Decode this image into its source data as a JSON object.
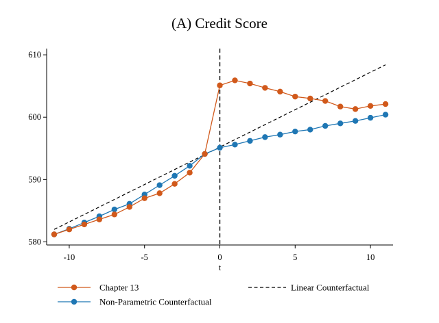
{
  "chart_data": {
    "type": "line",
    "title": "(A) Credit Score",
    "xlabel": "t",
    "ylabel": "",
    "xlim": [
      -11.5,
      11.5
    ],
    "ylim": [
      579.5,
      611
    ],
    "xticks": [
      -10,
      -5,
      0,
      5,
      10
    ],
    "yticks": [
      580,
      590,
      600,
      610
    ],
    "grid": false,
    "vline": 0,
    "legend_position": "bottom",
    "series": [
      {
        "name": "Chapter 13",
        "color": "#d1591b",
        "marker": "circle",
        "x": [
          -11,
          -10,
          -9,
          -8,
          -7,
          -6,
          -5,
          -4,
          -3,
          -2,
          -1,
          0,
          1,
          2,
          3,
          4,
          5,
          6,
          7,
          8,
          9,
          10,
          11
        ],
        "y": [
          581.2,
          582.0,
          582.8,
          583.6,
          584.4,
          585.6,
          587.0,
          587.8,
          589.3,
          591.1,
          594.1,
          605.1,
          605.9,
          605.4,
          604.7,
          604.1,
          603.3,
          603.0,
          602.6,
          601.7,
          601.3,
          601.8,
          602.1
        ]
      },
      {
        "name": "Non-Parametric  Counterfactual",
        "color": "#1f77b4",
        "marker": "circle",
        "x": [
          -11,
          -10,
          -9,
          -8,
          -7,
          -6,
          -5,
          -4,
          -3,
          -2,
          -1,
          0,
          1,
          2,
          3,
          4,
          5,
          6,
          7,
          8,
          9,
          10,
          11
        ],
        "y": [
          581.2,
          582.1,
          583.1,
          584.1,
          585.2,
          586.1,
          587.6,
          589.1,
          590.6,
          592.2,
          594.1,
          595.1,
          595.6,
          596.2,
          596.8,
          597.2,
          597.7,
          598.0,
          598.6,
          599.0,
          599.4,
          599.9,
          600.4
        ]
      },
      {
        "name": "Linear Counterfactual",
        "color": "#000000",
        "dash": true,
        "x": [
          -11,
          11
        ],
        "y": [
          582.0,
          608.4
        ]
      }
    ]
  }
}
